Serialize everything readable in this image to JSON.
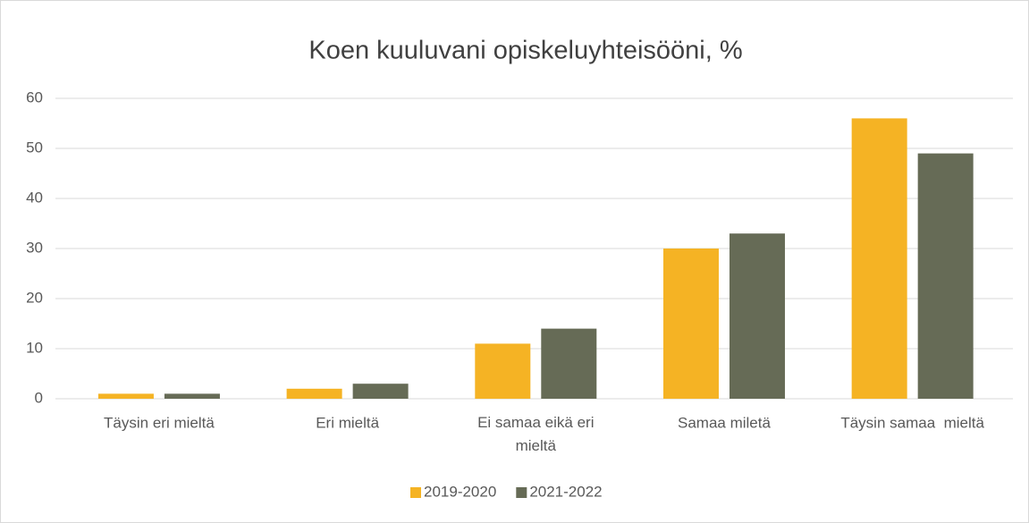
{
  "chart_data": {
    "type": "bar",
    "title": "Koen kuuluvani opiskeluyhteisööni, %",
    "categories": [
      "Täysin eri mieltä",
      "Eri mieltä",
      "Ei samaa eikä eri mieltä",
      "Samaa miletä",
      "Täysin samaa  mieltä"
    ],
    "series": [
      {
        "name": "2019-2020",
        "color": "#f5b324",
        "values": [
          1,
          2,
          11,
          30,
          56
        ]
      },
      {
        "name": "2021-2022",
        "color": "#666b56",
        "values": [
          1,
          3,
          14,
          33,
          49
        ]
      }
    ],
    "ylim": [
      0,
      60
    ],
    "yticks": [
      0,
      10,
      20,
      30,
      40,
      50,
      60
    ],
    "grid": true,
    "legend": "bottom"
  }
}
